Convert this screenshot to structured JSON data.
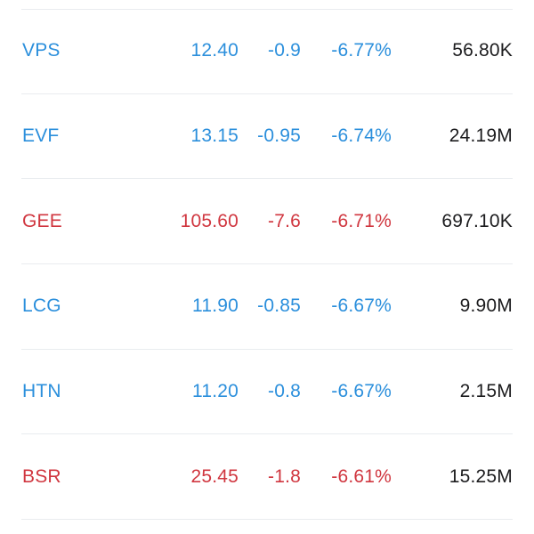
{
  "colors": {
    "blue": "#2b8fdc",
    "red": "#d0363f",
    "text_dark": "#1c1c1e",
    "divider": "#e9ecef"
  },
  "rows": [
    {
      "symbol": "VPS",
      "price": "12.40",
      "change": "-0.9",
      "pct": "-6.77%",
      "volume": "56.80K",
      "color": "blue"
    },
    {
      "symbol": "EVF",
      "price": "13.15",
      "change": "-0.95",
      "pct": "-6.74%",
      "volume": "24.19M",
      "color": "blue"
    },
    {
      "symbol": "GEE",
      "price": "105.60",
      "change": "-7.6",
      "pct": "-6.71%",
      "volume": "697.10K",
      "color": "red"
    },
    {
      "symbol": "LCG",
      "price": "11.90",
      "change": "-0.85",
      "pct": "-6.67%",
      "volume": "9.90M",
      "color": "blue"
    },
    {
      "symbol": "HTN",
      "price": "11.20",
      "change": "-0.8",
      "pct": "-6.67%",
      "volume": "2.15M",
      "color": "blue"
    },
    {
      "symbol": "BSR",
      "price": "25.45",
      "change": "-1.8",
      "pct": "-6.61%",
      "volume": "15.25M",
      "color": "red"
    }
  ]
}
